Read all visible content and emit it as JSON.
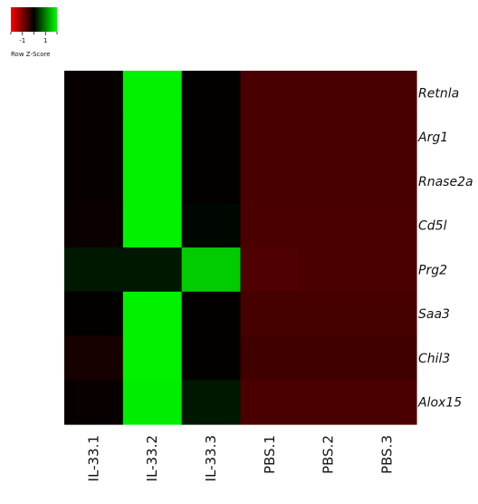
{
  "chart_data": {
    "type": "heatmap",
    "title": "",
    "xlabel": "",
    "ylabel": "",
    "columns": [
      "IL-33.1",
      "IL-33.2",
      "IL-33.3",
      "PBS.1",
      "PBS.2",
      "PBS.3"
    ],
    "rows": [
      "Retnla",
      "Arg1",
      "Rnase2a",
      "Cd5l",
      "Prg2",
      "Saa3",
      "Chil3",
      "Alox15"
    ],
    "values": [
      [
        -0.05,
        1.9,
        -0.02,
        -0.57,
        -0.57,
        -0.57
      ],
      [
        -0.05,
        1.9,
        -0.02,
        -0.57,
        -0.57,
        -0.57
      ],
      [
        -0.05,
        1.9,
        -0.02,
        -0.57,
        -0.57,
        -0.57
      ],
      [
        -0.08,
        1.9,
        0.05,
        -0.58,
        -0.58,
        -0.58
      ],
      [
        0.18,
        0.18,
        1.6,
        -0.62,
        -0.58,
        -0.58
      ],
      [
        -0.02,
        1.9,
        -0.02,
        -0.55,
        -0.55,
        -0.55
      ],
      [
        -0.18,
        1.9,
        -0.02,
        -0.5,
        -0.5,
        -0.5
      ],
      [
        -0.06,
        1.85,
        0.18,
        -0.58,
        -0.58,
        -0.58
      ]
    ],
    "color_scale": {
      "low": "#ff0000",
      "mid": "#000000",
      "high": "#00ff00",
      "min": -2,
      "max": 2
    },
    "legend": {
      "title": "Row Z-Score",
      "ticks": [
        "-1",
        "1"
      ],
      "tick_values": [
        -1,
        1
      ],
      "placement": "top-left"
    }
  }
}
